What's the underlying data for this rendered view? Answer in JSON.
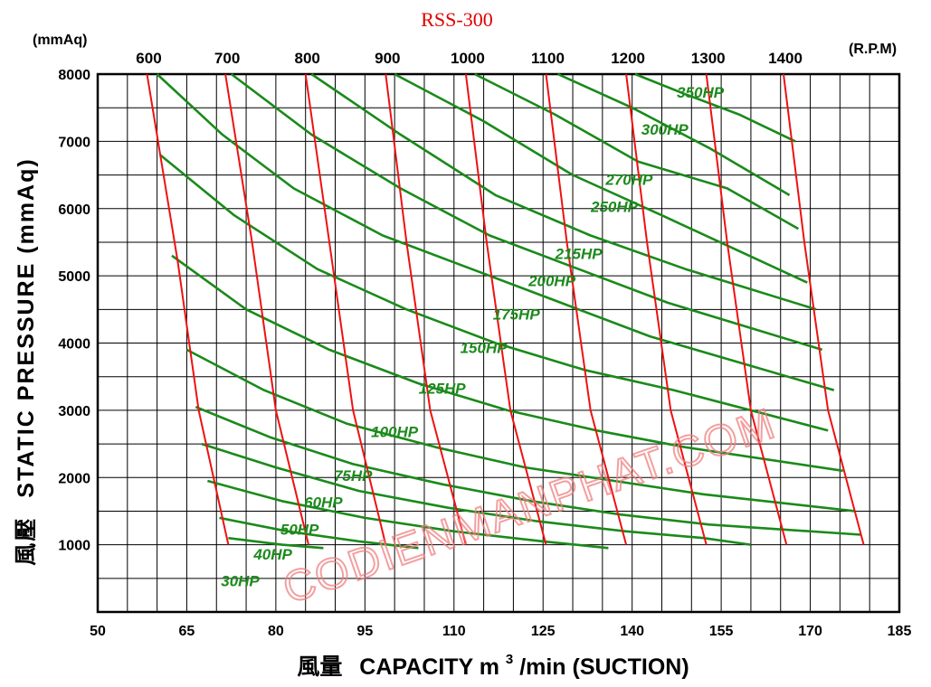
{
  "chart_data": {
    "type": "line",
    "title": "RSS-300",
    "y_unit": "(mmAq)",
    "rpm_unit": "(R.P.M)",
    "xlabel": {
      "prefix": "風量",
      "main": "CAPACITY  m",
      "sup": "3",
      "suffix": "/min (SUCTION)"
    },
    "ylabel": {
      "prefix": "風壓",
      "main": "STATIC  PRESSURE  (mmAq)"
    },
    "xlim": [
      50,
      185
    ],
    "ylim": [
      0,
      8000
    ],
    "x_ticks": [
      "50",
      "65",
      "80",
      "95",
      "110",
      "125",
      "140",
      "155",
      "170",
      "185"
    ],
    "y_ticks": [
      "1000",
      "2000",
      "3000",
      "4000",
      "5000",
      "6000",
      "7000",
      "8000"
    ],
    "grid": true,
    "rpm_lines": [
      {
        "label": "600",
        "points": [
          [
            58.3,
            8000
          ],
          [
            63.5,
            5200
          ],
          [
            67.0,
            3000
          ],
          [
            72.0,
            1000
          ]
        ]
      },
      {
        "label": "700",
        "points": [
          [
            71.5,
            8000
          ],
          [
            76.0,
            5500
          ],
          [
            80.0,
            3000
          ],
          [
            85.5,
            1000
          ]
        ]
      },
      {
        "label": "800",
        "points": [
          [
            85.0,
            8000
          ],
          [
            89.0,
            5500
          ],
          [
            93.0,
            3000
          ],
          [
            98.5,
            1000
          ]
        ]
      },
      {
        "label": "900",
        "points": [
          [
            98.5,
            8000
          ],
          [
            102.0,
            5500
          ],
          [
            106.0,
            3000
          ],
          [
            112.0,
            1000
          ]
        ]
      },
      {
        "label": "1000",
        "points": [
          [
            112.0,
            8000
          ],
          [
            115.5,
            5500
          ],
          [
            119.5,
            3000
          ],
          [
            125.5,
            1000
          ]
        ]
      },
      {
        "label": "1100",
        "points": [
          [
            125.5,
            8000
          ],
          [
            129.0,
            5500
          ],
          [
            133.0,
            3000
          ],
          [
            139.0,
            1000
          ]
        ]
      },
      {
        "label": "1200",
        "points": [
          [
            139.0,
            8000
          ],
          [
            142.5,
            5500
          ],
          [
            146.5,
            3000
          ],
          [
            152.5,
            1000
          ]
        ]
      },
      {
        "label": "1300",
        "points": [
          [
            152.5,
            8000
          ],
          [
            156.0,
            5500
          ],
          [
            160.0,
            3000
          ],
          [
            166.0,
            1000
          ]
        ]
      },
      {
        "label": "1400",
        "points": [
          [
            165.5,
            8000
          ],
          [
            169.0,
            5500
          ],
          [
            173.0,
            3000
          ],
          [
            179.0,
            1000
          ]
        ]
      }
    ],
    "hp_lines": [
      {
        "label": "350HP",
        "points": [
          [
            140.5,
            8000
          ],
          [
            149.0,
            7700
          ],
          [
            158.0,
            7400
          ],
          [
            167.5,
            7000
          ]
        ]
      },
      {
        "label": "300HP",
        "points": [
          [
            127.5,
            8000
          ],
          [
            140.0,
            7500
          ],
          [
            153.0,
            6900
          ],
          [
            166.5,
            6200
          ]
        ]
      },
      {
        "label": "270HP",
        "points": [
          [
            113.5,
            8000
          ],
          [
            127.0,
            7400
          ],
          [
            141.0,
            6700
          ],
          [
            156.0,
            6300
          ],
          [
            168.0,
            5700
          ]
        ]
      },
      {
        "label": "250HP",
        "points": [
          [
            100.0,
            8000
          ],
          [
            115.0,
            7300
          ],
          [
            130.0,
            6500
          ],
          [
            145.0,
            5900
          ],
          [
            169.5,
            4900
          ]
        ]
      },
      {
        "label": "215HP",
        "points": [
          [
            86.0,
            8000
          ],
          [
            101.0,
            7100
          ],
          [
            117.0,
            6200
          ],
          [
            133.0,
            5600
          ],
          [
            149.0,
            5100
          ],
          [
            171.0,
            4500
          ]
        ]
      },
      {
        "label": "200HP",
        "points": [
          [
            72.5,
            8000
          ],
          [
            86.0,
            7100
          ],
          [
            101.0,
            6300
          ],
          [
            116.0,
            5600
          ],
          [
            131.0,
            5100
          ],
          [
            146.0,
            4600
          ],
          [
            172.0,
            3900
          ]
        ]
      },
      {
        "label": "175HP",
        "points": [
          [
            60.0,
            8000
          ],
          [
            71.0,
            7100
          ],
          [
            83.0,
            6300
          ],
          [
            98.0,
            5600
          ],
          [
            113.0,
            5100
          ],
          [
            128.0,
            4600
          ],
          [
            143.0,
            4100
          ],
          [
            174.0,
            3300
          ]
        ]
      },
      {
        "label": "150HP",
        "points": [
          [
            60.5,
            6800
          ],
          [
            73.0,
            5900
          ],
          [
            87.0,
            5100
          ],
          [
            102.0,
            4500
          ],
          [
            117.0,
            4000
          ],
          [
            132.0,
            3600
          ],
          [
            147.0,
            3300
          ],
          [
            173.0,
            2700
          ]
        ]
      },
      {
        "label": "125HP",
        "points": [
          [
            62.5,
            5300
          ],
          [
            75.0,
            4500
          ],
          [
            89.0,
            3900
          ],
          [
            104.0,
            3400
          ],
          [
            119.0,
            3000
          ],
          [
            134.0,
            2700
          ],
          [
            149.0,
            2450
          ],
          [
            175.5,
            2100
          ]
        ]
      },
      {
        "label": "100HP",
        "points": [
          [
            65.0,
            3900
          ],
          [
            78.0,
            3300
          ],
          [
            92.0,
            2800
          ],
          [
            107.0,
            2450
          ],
          [
            122.0,
            2150
          ],
          [
            137.0,
            1950
          ],
          [
            152.0,
            1750
          ],
          [
            177.5,
            1500
          ]
        ]
      },
      {
        "label": "75HP",
        "points": [
          [
            66.5,
            3050
          ],
          [
            79.0,
            2600
          ],
          [
            93.0,
            2200
          ],
          [
            108.0,
            1900
          ],
          [
            123.0,
            1650
          ],
          [
            138.0,
            1450
          ],
          [
            153.0,
            1300
          ],
          [
            178.5,
            1150
          ]
        ]
      },
      {
        "label": "60HP",
        "points": [
          [
            67.5,
            2500
          ],
          [
            80.0,
            2150
          ],
          [
            94.0,
            1800
          ],
          [
            109.0,
            1550
          ],
          [
            124.0,
            1350
          ],
          [
            139.0,
            1200
          ],
          [
            152.0,
            1100
          ],
          [
            160.0,
            1000
          ]
        ]
      },
      {
        "label": "50HP",
        "points": [
          [
            68.5,
            1950
          ],
          [
            81.0,
            1650
          ],
          [
            95.0,
            1400
          ],
          [
            110.0,
            1200
          ],
          [
            125.0,
            1050
          ],
          [
            136.0,
            950
          ]
        ]
      },
      {
        "label": "40HP",
        "points": [
          [
            70.5,
            1400
          ],
          [
            82.0,
            1200
          ],
          [
            94.0,
            1050
          ],
          [
            104.0,
            950
          ]
        ]
      },
      {
        "label": "30HP",
        "points": [
          [
            72.0,
            1100
          ],
          [
            81.0,
            1000
          ],
          [
            88.0,
            950
          ]
        ]
      }
    ],
    "hp_label_positions": [
      {
        "label": "350HP",
        "x": 151.5,
        "y": 7650
      },
      {
        "label": "300HP",
        "x": 145.5,
        "y": 7100
      },
      {
        "label": "270HP",
        "x": 139.5,
        "y": 6350
      },
      {
        "label": "250HP",
        "x": 137.0,
        "y": 5950
      },
      {
        "label": "215HP",
        "x": 131.0,
        "y": 5250
      },
      {
        "label": "200HP",
        "x": 126.5,
        "y": 4850
      },
      {
        "label": "175HP",
        "x": 120.5,
        "y": 4350
      },
      {
        "label": "150HP",
        "x": 115.0,
        "y": 3850
      },
      {
        "label": "125HP",
        "x": 108.0,
        "y": 3250
      },
      {
        "label": "100HP",
        "x": 100.0,
        "y": 2600
      },
      {
        "label": "75HP",
        "x": 93.0,
        "y": 1950
      },
      {
        "label": "60HP",
        "x": 88.0,
        "y": 1550
      },
      {
        "label": "50HP",
        "x": 84.0,
        "y": 1150
      },
      {
        "label": "40HP",
        "x": 79.5,
        "y": 780
      },
      {
        "label": "30HP",
        "x": 74.0,
        "y": 380
      }
    ]
  },
  "watermark": "CODIENMANPHAT.COM"
}
